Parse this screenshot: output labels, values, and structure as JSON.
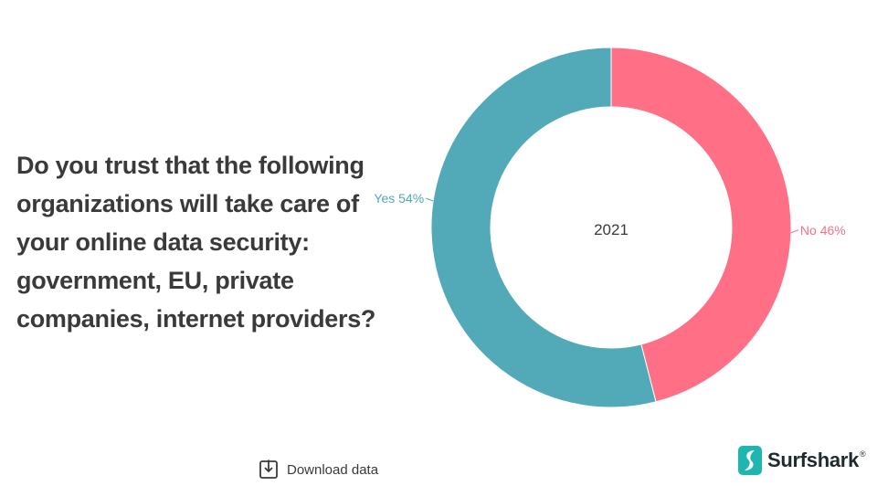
{
  "question": "Do you trust that the following organizations will take care of your online data security: government, EU, private companies, internet providers?",
  "chart_data": {
    "type": "pie",
    "variant": "donut",
    "center_label": "2021",
    "slices": [
      {
        "label": "No 46%",
        "value": 46,
        "color": "#ff6f85"
      },
      {
        "label": "Yes 54%",
        "value": 54,
        "color": "#52a9b8"
      }
    ]
  },
  "download_label": "Download data",
  "brand": {
    "name": "Surfshark",
    "registered": "®",
    "icon": "surfshark-logo-icon",
    "color": "#1fb5b0"
  }
}
